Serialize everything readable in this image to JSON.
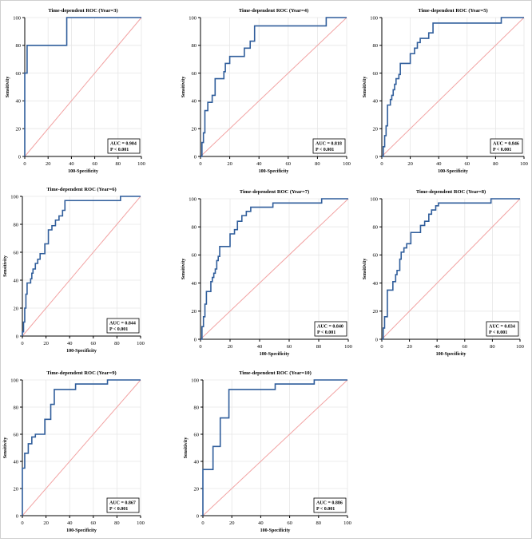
{
  "colors": {
    "roc": "#2f5d9b",
    "diagonal": "#f2a3a3",
    "grid": "#e6e6e6",
    "axis": "#000000",
    "bg": "#ffffff"
  },
  "chart_data": [
    {
      "type": "line",
      "title": "Time-dependent ROC (Year=3)",
      "xlabel": "100-Specificity",
      "ylabel": "Sensitivity",
      "xlim": [
        0,
        100
      ],
      "ylim": [
        0,
        100
      ],
      "xticks": [
        0,
        20,
        40,
        60,
        80,
        100
      ],
      "yticks": [
        0,
        20,
        40,
        60,
        80,
        100
      ],
      "annotation": [
        "AUC = 0.904",
        "P < 0.001"
      ],
      "series": [
        {
          "name": "ROC",
          "x": [
            0,
            0,
            0,
            2,
            2,
            8,
            8,
            36,
            36,
            100
          ],
          "y": [
            0,
            20,
            60,
            60,
            80,
            80,
            80,
            80,
            100,
            100
          ]
        }
      ]
    },
    {
      "type": "line",
      "title": "Time-dependent ROC (Year=4)",
      "xlabel": "100-Specificity",
      "ylabel": "Sensitivity",
      "xlim": [
        0,
        100
      ],
      "ylim": [
        0,
        100
      ],
      "xticks": [
        0,
        20,
        40,
        60,
        80,
        100
      ],
      "yticks": [
        0,
        20,
        40,
        60,
        80,
        100
      ],
      "annotation": [
        "AUC = 0.818",
        "P < 0.001"
      ],
      "series": [
        {
          "name": "ROC",
          "x": [
            0,
            1,
            1,
            2,
            2,
            3,
            3,
            5,
            5,
            8,
            8,
            10,
            10,
            16,
            16,
            17,
            17,
            20,
            20,
            26,
            26,
            30,
            30,
            34,
            34,
            37,
            37,
            86,
            86,
            100
          ],
          "y": [
            0,
            0,
            10,
            10,
            17,
            17,
            33,
            33,
            39,
            39,
            44,
            44,
            56,
            56,
            61,
            61,
            67,
            67,
            72,
            72,
            72,
            72,
            78,
            78,
            83,
            83,
            94,
            94,
            100,
            100
          ]
        }
      ]
    },
    {
      "type": "line",
      "title": "Time-dependent ROC (Year=5)",
      "xlabel": "100-Specificity",
      "ylabel": "Sensitivity",
      "xlim": [
        0,
        100
      ],
      "ylim": [
        0,
        100
      ],
      "xticks": [
        0,
        20,
        40,
        60,
        80,
        100
      ],
      "yticks": [
        0,
        20,
        40,
        60,
        80,
        100
      ],
      "annotation": [
        "AUC = 0.846",
        "P < 0.001"
      ],
      "series": [
        {
          "name": "ROC",
          "x": [
            0,
            1,
            1,
            2,
            2,
            3,
            3,
            4,
            4,
            6,
            6,
            7,
            7,
            8,
            8,
            9,
            9,
            10,
            10,
            12,
            12,
            13,
            13,
            15,
            15,
            20,
            20,
            23,
            23,
            25,
            25,
            27,
            27,
            33,
            33,
            36,
            36,
            84,
            84,
            100
          ],
          "y": [
            0,
            0,
            7,
            7,
            15,
            15,
            22,
            22,
            37,
            37,
            41,
            41,
            44,
            44,
            48,
            48,
            52,
            52,
            56,
            56,
            59,
            59,
            67,
            67,
            67,
            67,
            74,
            74,
            78,
            78,
            82,
            82,
            85,
            85,
            89,
            89,
            96,
            96,
            100,
            100
          ]
        }
      ]
    },
    {
      "type": "line",
      "title": "Time-dependent ROC (Year=6)",
      "xlabel": "100-Specificity",
      "ylabel": "Sensitivity",
      "xlim": [
        0,
        100
      ],
      "ylim": [
        0,
        100
      ],
      "xticks": [
        0,
        20,
        40,
        60,
        80,
        100
      ],
      "yticks": [
        0,
        20,
        40,
        60,
        80,
        100
      ],
      "annotation": [
        "AUC = 0.844",
        "P < 0.001"
      ],
      "series": [
        {
          "name": "ROC",
          "x": [
            0,
            0,
            1,
            1,
            2,
            2,
            3,
            3,
            4,
            4,
            7,
            7,
            8,
            8,
            9,
            9,
            11,
            11,
            13,
            13,
            15,
            15,
            19,
            19,
            22,
            22,
            25,
            25,
            28,
            28,
            31,
            31,
            34,
            34,
            36,
            36,
            83,
            83,
            100
          ],
          "y": [
            0,
            3,
            3,
            10,
            10,
            20,
            20,
            30,
            30,
            38,
            38,
            41,
            41,
            45,
            45,
            48,
            48,
            52,
            52,
            55,
            55,
            59,
            59,
            66,
            66,
            76,
            76,
            79,
            79,
            83,
            83,
            86,
            86,
            90,
            90,
            97,
            97,
            100,
            100
          ]
        }
      ]
    },
    {
      "type": "line",
      "title": "Time-dependent ROC (Year=7)",
      "xlabel": "100-Specificity",
      "ylabel": "Sensitivity",
      "xlim": [
        0,
        100
      ],
      "ylim": [
        0,
        100
      ],
      "xticks": [
        0,
        20,
        40,
        60,
        80,
        100
      ],
      "yticks": [
        0,
        20,
        40,
        60,
        80,
        100
      ],
      "annotation": [
        "AUC = 0.840",
        "P < 0.001"
      ],
      "series": [
        {
          "name": "ROC",
          "x": [
            0,
            1,
            1,
            2,
            2,
            3,
            3,
            4,
            4,
            7,
            7,
            8,
            8,
            9,
            9,
            10,
            10,
            11,
            11,
            12,
            12,
            13,
            13,
            15,
            15,
            20,
            20,
            23,
            23,
            25,
            25,
            28,
            28,
            31,
            31,
            34,
            34,
            49,
            49,
            82,
            82,
            100
          ],
          "y": [
            0,
            0,
            9,
            9,
            16,
            16,
            25,
            25,
            34,
            34,
            41,
            41,
            44,
            44,
            47,
            47,
            50,
            50,
            56,
            56,
            59,
            59,
            66,
            66,
            66,
            66,
            75,
            75,
            78,
            78,
            84,
            84,
            88,
            88,
            91,
            91,
            94,
            94,
            97,
            97,
            100,
            100
          ]
        }
      ]
    },
    {
      "type": "line",
      "title": "Time-dependent ROC (Year=8)",
      "xlabel": "100-Specificity",
      "ylabel": "Sensitivity",
      "xlim": [
        0,
        100
      ],
      "ylim": [
        0,
        100
      ],
      "xticks": [
        0,
        20,
        40,
        60,
        80,
        100
      ],
      "yticks": [
        0,
        20,
        40,
        60,
        80,
        100
      ],
      "annotation": [
        "AUC = 0.834",
        "P < 0.001"
      ],
      "series": [
        {
          "name": "ROC",
          "x": [
            0,
            1,
            1,
            2,
            2,
            4,
            4,
            8,
            8,
            10,
            10,
            11,
            11,
            13,
            13,
            14,
            14,
            16,
            16,
            18,
            18,
            21,
            21,
            28,
            28,
            31,
            31,
            34,
            34,
            36,
            36,
            39,
            39,
            41,
            41,
            54,
            54,
            79,
            79,
            100
          ],
          "y": [
            0,
            0,
            8,
            8,
            16,
            16,
            35,
            35,
            41,
            41,
            46,
            46,
            49,
            49,
            57,
            57,
            62,
            62,
            65,
            65,
            68,
            68,
            76,
            76,
            81,
            81,
            84,
            84,
            89,
            89,
            92,
            92,
            95,
            95,
            97,
            97,
            97,
            97,
            100,
            100
          ]
        }
      ]
    },
    {
      "type": "line",
      "title": "Time-dependent ROC (Year=9)",
      "xlabel": "100-Specificity",
      "ylabel": "Sensitivity",
      "xlim": [
        0,
        100
      ],
      "ylim": [
        0,
        100
      ],
      "xticks": [
        0,
        20,
        40,
        60,
        80,
        100
      ],
      "yticks": [
        0,
        20,
        40,
        60,
        80,
        100
      ],
      "annotation": [
        "AUC = 0.867",
        "P < 0.001"
      ],
      "series": [
        {
          "name": "ROC",
          "x": [
            0,
            0,
            2,
            2,
            5,
            5,
            8,
            8,
            11,
            11,
            14,
            14,
            19,
            19,
            24,
            24,
            27,
            27,
            29,
            29,
            45,
            45,
            72,
            72,
            100
          ],
          "y": [
            0,
            35,
            35,
            46,
            46,
            53,
            53,
            58,
            58,
            60,
            60,
            60,
            60,
            71,
            71,
            82,
            82,
            93,
            93,
            93,
            93,
            97,
            97,
            100,
            100
          ]
        }
      ]
    },
    {
      "type": "line",
      "title": "Time-dependent ROC (Year=10)",
      "xlabel": "100-Specificity",
      "ylabel": "Sensitivity",
      "xlim": [
        0,
        100
      ],
      "ylim": [
        0,
        100
      ],
      "xticks": [
        0,
        20,
        40,
        60,
        80,
        100
      ],
      "yticks": [
        0,
        20,
        40,
        60,
        80,
        100
      ],
      "annotation": [
        "AUC = 0.886",
        "P < 0.001"
      ],
      "series": [
        {
          "name": "ROC",
          "x": [
            0,
            0,
            7,
            7,
            12,
            12,
            18,
            18,
            50,
            50,
            77,
            77,
            100
          ],
          "y": [
            0,
            34,
            34,
            51,
            51,
            72,
            72,
            93,
            93,
            97,
            97,
            100,
            100
          ]
        }
      ]
    }
  ]
}
